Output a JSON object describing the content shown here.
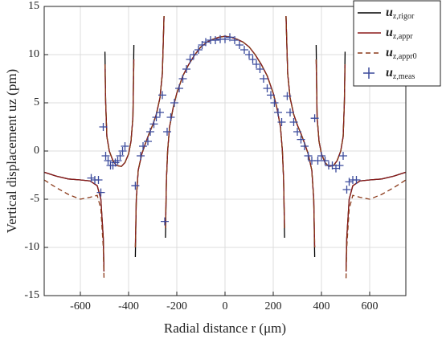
{
  "chart_data": {
    "type": "line",
    "x_label": "Radial distance r (μm)",
    "y_label": "Vertical displacement uz (pm)",
    "xlim": [
      -750,
      750
    ],
    "xticks": [
      -600,
      -400,
      -200,
      0,
      200,
      400,
      600
    ],
    "ylim": [
      -15,
      15
    ],
    "yticks": [
      -15,
      -10,
      -5,
      0,
      5,
      10,
      15
    ],
    "grid": true,
    "legend": "upper right",
    "series": [
      {
        "name": "uz,rigor",
        "type": "line",
        "style": "solid",
        "color": "#000000",
        "x": [
          -750,
          -700,
          -650,
          -600,
          -560,
          -530,
          -515,
          -505,
          -502,
          -500,
          -498,
          -495,
          -490,
          -480,
          -465,
          -450,
          -430,
          -415,
          -400,
          -390,
          -382,
          -378,
          -375,
          -372,
          -368,
          -360,
          -345,
          -330,
          -315,
          -300,
          -285,
          -270,
          -260,
          -253,
          -250,
          -247,
          -243,
          -238,
          -230,
          -215,
          -200,
          -175,
          -150,
          -125,
          -100,
          -75,
          -50,
          -25,
          0,
          25,
          50,
          75,
          100,
          125,
          150,
          175,
          200,
          215,
          230,
          238,
          243,
          247,
          250,
          253,
          260,
          270,
          285,
          300,
          315,
          330,
          345,
          360,
          368,
          372,
          375,
          378,
          382,
          390,
          400,
          415,
          430,
          450,
          465,
          480,
          490,
          495,
          498,
          500,
          502,
          505,
          515,
          530,
          560,
          600,
          650,
          700,
          750
        ],
        "values": [
          -2.2,
          -2.6,
          -2.9,
          -3.0,
          -3.1,
          -3.6,
          -5,
          -9,
          -12.5,
          null,
          10.3,
          5,
          1.5,
          0,
          -1,
          -1.5,
          -1.6,
          -1.2,
          -0.3,
          1,
          3.5,
          11,
          null,
          -11,
          -5,
          -2,
          -0.3,
          0.8,
          1.8,
          2.7,
          3.8,
          5.5,
          8,
          14,
          null,
          -9,
          -3,
          0,
          2.5,
          4.5,
          6,
          7.8,
          9,
          10,
          10.8,
          11.3,
          11.6,
          11.8,
          11.9,
          11.8,
          11.6,
          11.3,
          10.8,
          10,
          9,
          7.8,
          6,
          4.5,
          2.5,
          0,
          -3,
          -9,
          null,
          14,
          8,
          5.5,
          3.8,
          2.7,
          1.8,
          0.8,
          -0.3,
          -2,
          -5,
          -11,
          null,
          11,
          3.5,
          1,
          -0.3,
          -1.2,
          -1.6,
          -1.5,
          -1,
          0,
          1.5,
          5,
          10.3,
          null,
          -12.5,
          -9,
          -5,
          -3.6,
          -3.1,
          -3.0,
          -2.9,
          -2.6,
          -2.2
        ]
      },
      {
        "name": "uz,appr",
        "type": "line",
        "style": "solid",
        "color": "#8b1a1a",
        "x": [
          -750,
          -700,
          -650,
          -600,
          -560,
          -530,
          -515,
          -505,
          -502,
          -500,
          -498,
          -495,
          -490,
          -480,
          -465,
          -450,
          -430,
          -415,
          -400,
          -390,
          -382,
          -378,
          -375,
          -372,
          -368,
          -360,
          -345,
          -330,
          -315,
          -300,
          -285,
          -270,
          -260,
          -253,
          -250,
          -247,
          -243,
          -238,
          -230,
          -215,
          -200,
          -175,
          -150,
          -125,
          -100,
          -75,
          -50,
          -25,
          0,
          25,
          50,
          75,
          100,
          125,
          150,
          175,
          200,
          215,
          230,
          238,
          243,
          247,
          250,
          253,
          260,
          270,
          285,
          300,
          315,
          330,
          345,
          360,
          368,
          372,
          375,
          378,
          382,
          390,
          400,
          415,
          430,
          450,
          465,
          480,
          490,
          495,
          498,
          500,
          502,
          505,
          515,
          530,
          560,
          600,
          650,
          700,
          750
        ],
        "values": [
          -2.2,
          -2.6,
          -2.9,
          -3.0,
          -3.1,
          -3.6,
          -5,
          -9,
          -12.5,
          null,
          9,
          5,
          1.5,
          0,
          -1,
          -1.5,
          -1.6,
          -1.2,
          -0.3,
          1,
          3.5,
          9.5,
          null,
          -10,
          -5,
          -2,
          -0.3,
          0.8,
          1.8,
          2.7,
          3.8,
          5.5,
          8,
          14,
          null,
          -8,
          -3,
          0,
          2.5,
          4.5,
          6,
          7.8,
          9,
          10,
          10.8,
          11.3,
          11.6,
          11.8,
          11.9,
          11.8,
          11.6,
          11.3,
          10.8,
          10,
          9,
          7.8,
          6,
          4.5,
          2.5,
          0,
          -3,
          -8,
          null,
          14,
          8,
          5.5,
          3.8,
          2.7,
          1.8,
          0.8,
          -0.3,
          -2,
          -5,
          -10,
          null,
          9.5,
          3.5,
          1,
          -0.3,
          -1.2,
          -1.6,
          -1.5,
          -1,
          0,
          1.5,
          5,
          9,
          null,
          -12.5,
          -9,
          -5,
          -3.6,
          -3.1,
          -3.0,
          -2.9,
          -2.6,
          -2.2
        ]
      },
      {
        "name": "uz,appr0",
        "type": "line",
        "style": "dashed",
        "color": "#8b3a1a",
        "x": [
          -750,
          -700,
          -650,
          -600,
          -560,
          -530,
          -515,
          -505,
          -502,
          -500,
          -498,
          -495,
          -490,
          -480,
          -465,
          -450,
          -430,
          -415,
          -400,
          -390,
          -382,
          -378,
          -375,
          -372,
          -368,
          -360,
          -345,
          -330,
          -315,
          -300,
          -285,
          -270,
          -260,
          -253,
          -250,
          -247,
          -243,
          -238,
          -230,
          -215,
          -200,
          -175,
          -150,
          -125,
          -100,
          -75,
          -50,
          -25,
          0,
          25,
          50,
          75,
          100,
          125,
          150,
          175,
          200,
          215,
          230,
          238,
          243,
          247,
          250,
          253,
          260,
          270,
          285,
          300,
          315,
          330,
          345,
          360,
          368,
          372,
          375,
          378,
          382,
          390,
          400,
          415,
          430,
          450,
          465,
          480,
          490,
          495,
          498,
          500,
          502,
          505,
          515,
          530,
          560,
          600,
          650,
          700,
          750
        ],
        "values": [
          -3,
          -3.8,
          -4.5,
          -5,
          -4.8,
          -4.6,
          -6,
          -10,
          -13.2,
          null,
          9,
          5,
          1.5,
          0,
          -1,
          -1.5,
          -1.6,
          -1.2,
          -0.3,
          1,
          3.5,
          9.5,
          null,
          -10,
          -5,
          -2,
          -0.3,
          0.8,
          1.8,
          2.7,
          3.8,
          5.5,
          8,
          14,
          null,
          -8,
          -3,
          0,
          2.5,
          4.5,
          6,
          7.8,
          9,
          10,
          10.8,
          11.3,
          11.6,
          11.8,
          11.9,
          11.8,
          11.6,
          11.3,
          10.8,
          10,
          9,
          7.8,
          6,
          4.5,
          2.5,
          0,
          -3,
          -8,
          null,
          14,
          8,
          5.5,
          3.8,
          2.7,
          1.8,
          0.8,
          -0.3,
          -2,
          -5,
          -10,
          null,
          9.5,
          3.5,
          1,
          -0.3,
          -1.2,
          -1.6,
          -1.5,
          -1,
          0,
          1.5,
          5,
          9,
          null,
          -13.2,
          -10,
          -6,
          -4.6,
          -4.8,
          -5,
          -4.5,
          -3.8,
          -3
        ]
      },
      {
        "name": "uz,meas",
        "type": "scatter",
        "marker": "+",
        "color": "#3b4a9c",
        "x": [
          -555,
          -540,
          -525,
          -515,
          -505,
          -495,
          -485,
          -475,
          -465,
          -455,
          -445,
          -435,
          -425,
          -415,
          -372,
          -350,
          -340,
          -320,
          -310,
          -295,
          -285,
          -270,
          -260,
          -250,
          -240,
          -225,
          -210,
          -190,
          -175,
          -160,
          -145,
          -130,
          -110,
          -95,
          -80,
          -60,
          -40,
          -20,
          0,
          20,
          40,
          60,
          80,
          100,
          115,
          130,
          145,
          160,
          175,
          190,
          205,
          220,
          235,
          258,
          270,
          285,
          300,
          315,
          330,
          345,
          360,
          372,
          385,
          400,
          415,
          430,
          445,
          460,
          475,
          490,
          505,
          515,
          530,
          545
        ],
        "values": [
          -2.8,
          -3,
          -3,
          -4.3,
          2.5,
          -0.5,
          -1,
          -1.5,
          -1.5,
          -1.2,
          -1,
          -0.5,
          0,
          0.5,
          -3.6,
          -0.5,
          0.5,
          1,
          2,
          2.8,
          3.5,
          4,
          5.8,
          -7.3,
          2,
          3.5,
          5,
          6.5,
          7.5,
          8.5,
          9.5,
          10,
          10.5,
          11,
          11.3,
          11.5,
          11.5,
          11.6,
          11.6,
          11.8,
          11.5,
          11,
          10.5,
          10,
          9.5,
          9,
          8.5,
          7.5,
          6.5,
          5.8,
          5,
          4,
          3,
          5.7,
          4,
          3,
          2,
          1.2,
          0.5,
          -0.5,
          -1,
          3.4,
          -1,
          -0.5,
          -1,
          -1.5,
          -1.5,
          -1.8,
          -1.5,
          -0.5,
          -4,
          -3.2,
          -3,
          -3
        ]
      }
    ]
  }
}
